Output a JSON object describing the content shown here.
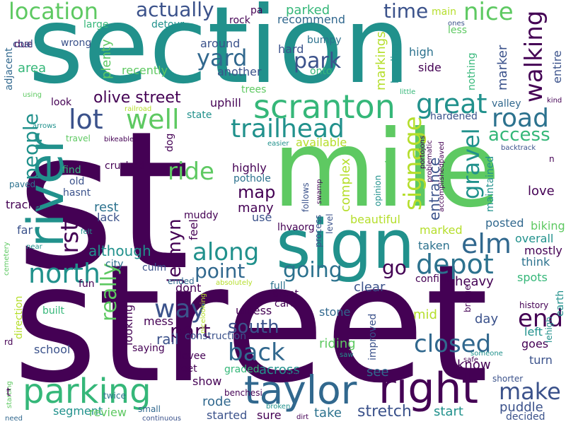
{
  "words": [
    {
      "text": "st",
      "color": "#440154"
    },
    {
      "text": "street",
      "color": "#440154"
    },
    {
      "text": "section",
      "color": "#21918c"
    },
    {
      "text": "mile",
      "color": "#5ec962"
    },
    {
      "text": "sign",
      "color": "#21918c"
    },
    {
      "text": "taylor",
      "color": "#31688e"
    },
    {
      "text": "right",
      "color": "#440154"
    },
    {
      "text": "parking",
      "color": "#35b779"
    },
    {
      "text": "river",
      "color": "#21918c"
    },
    {
      "text": "scranton",
      "color": "#35b779"
    },
    {
      "text": "trailhead",
      "color": "#21918c"
    },
    {
      "text": "location",
      "color": "#5ec962"
    },
    {
      "text": "actually",
      "color": "#3b528b"
    },
    {
      "text": "nice",
      "color": "#5ec962"
    },
    {
      "text": "time",
      "color": "#3b528b"
    },
    {
      "text": "walking",
      "color": "#440154"
    },
    {
      "text": "road",
      "color": "#2c728e"
    },
    {
      "text": "yard",
      "color": "#31688e"
    },
    {
      "text": "park",
      "color": "#3b528b"
    },
    {
      "text": "lot",
      "color": "#3b528b"
    },
    {
      "text": "well",
      "color": "#5ec962"
    },
    {
      "text": "great",
      "color": "#21918c"
    },
    {
      "text": "olive street",
      "color": "#440154"
    },
    {
      "text": "access",
      "color": "#35b779"
    },
    {
      "text": "ride",
      "color": "#5ec962"
    },
    {
      "text": "signage",
      "color": "#b5de2b"
    },
    {
      "text": "gravel",
      "color": "#21918c"
    },
    {
      "text": "first",
      "color": "#440154"
    },
    {
      "text": "north",
      "color": "#21918c"
    },
    {
      "text": "people",
      "color": "#21918c"
    },
    {
      "text": "along",
      "color": "#21918c"
    },
    {
      "text": "elm",
      "color": "#31688e"
    },
    {
      "text": "depot",
      "color": "#2c728e"
    },
    {
      "text": "map",
      "color": "#440154"
    },
    {
      "text": "jermyn",
      "color": "#440154"
    },
    {
      "text": "point",
      "color": "#31688e"
    },
    {
      "text": "going",
      "color": "#2c728e"
    },
    {
      "text": "go",
      "color": "#440154"
    },
    {
      "text": "way",
      "color": "#3b528b"
    },
    {
      "text": "back",
      "color": "#31688e"
    },
    {
      "text": "really",
      "color": "#5ec962"
    },
    {
      "text": "south",
      "color": "#3b528b"
    },
    {
      "text": "part",
      "color": "#440154"
    },
    {
      "text": "end",
      "color": "#440154"
    },
    {
      "text": "closed",
      "color": "#31688e"
    },
    {
      "text": "make",
      "color": "#3b528b"
    },
    {
      "text": "stretch",
      "color": "#3b528b"
    },
    {
      "text": "entrance",
      "color": "#3b528b"
    },
    {
      "text": "complex",
      "color": "#b5de2b"
    },
    {
      "text": "parked",
      "color": "#35b779"
    },
    {
      "text": "recommend",
      "color": "#31688e"
    },
    {
      "text": "plenty",
      "color": "#5ec962"
    },
    {
      "text": "area",
      "color": "#35b779"
    },
    {
      "text": "due",
      "color": "#440154"
    },
    {
      "text": "coal",
      "color": "#3b528b"
    },
    {
      "text": "adjacent",
      "color": "#31688e"
    },
    {
      "text": "wrong",
      "color": "#3b528b"
    },
    {
      "text": "large",
      "color": "#35b779"
    },
    {
      "text": "detour",
      "color": "#21918c"
    },
    {
      "text": "around",
      "color": "#3b528b"
    },
    {
      "text": "another",
      "color": "#3b528b"
    },
    {
      "text": "hard",
      "color": "#3b528b"
    },
    {
      "text": "markings",
      "color": "#b5de2b"
    },
    {
      "text": "heading",
      "color": "#21918c"
    },
    {
      "text": "high",
      "color": "#2c728e"
    },
    {
      "text": "side",
      "color": "#440154"
    },
    {
      "text": "nothing",
      "color": "#35b779"
    },
    {
      "text": "marker",
      "color": "#3b528b"
    },
    {
      "text": "entire",
      "color": "#3b528b"
    },
    {
      "text": "rock",
      "color": "#440154"
    },
    {
      "text": "pa",
      "color": "#440154"
    },
    {
      "text": "bumpy",
      "color": "#2c728e"
    },
    {
      "text": "main",
      "color": "#b5de2b"
    },
    {
      "text": "less",
      "color": "#5ec962"
    },
    {
      "text": "recently",
      "color": "#5ec962"
    },
    {
      "text": "onto",
      "color": "#35b779"
    },
    {
      "text": "look",
      "color": "#440154"
    },
    {
      "text": "uphill",
      "color": "#440154"
    },
    {
      "text": "trees",
      "color": "#5ec962"
    },
    {
      "text": "valley",
      "color": "#31688e"
    },
    {
      "text": "hardened",
      "color": "#3b528b"
    },
    {
      "text": "kind",
      "color": "#440154"
    },
    {
      "text": "available",
      "color": "#b5de2b"
    },
    {
      "text": "crossing",
      "color": "#5ec962"
    },
    {
      "text": "maintained",
      "color": "#21918c"
    },
    {
      "text": "highly",
      "color": "#440154"
    },
    {
      "text": "pothole",
      "color": "#2c728e"
    },
    {
      "text": "crushed",
      "color": "#440154"
    },
    {
      "text": "dog",
      "color": "#440154"
    },
    {
      "text": "find",
      "color": "#35b779"
    },
    {
      "text": "old",
      "color": "#3b528b"
    },
    {
      "text": "hasnt",
      "color": "#3b528b"
    },
    {
      "text": "paved",
      "color": "#2c728e"
    },
    {
      "text": "tracks",
      "color": "#440154"
    },
    {
      "text": "rest",
      "color": "#2c728e"
    },
    {
      "text": "lack",
      "color": "#3b528b"
    },
    {
      "text": "far",
      "color": "#3b528b"
    },
    {
      "text": "many",
      "color": "#440154"
    },
    {
      "text": "use",
      "color": "#3b528b"
    },
    {
      "text": "feel",
      "color": "#440154"
    },
    {
      "text": "follows",
      "color": "#3b528b"
    },
    {
      "text": "opinion",
      "color": "#21918c"
    },
    {
      "text": "muddy",
      "color": "#440154"
    },
    {
      "text": "love",
      "color": "#440154"
    },
    {
      "text": "beautiful",
      "color": "#b5de2b"
    },
    {
      "text": "biking",
      "color": "#5ec962"
    },
    {
      "text": "posted",
      "color": "#31688e"
    },
    {
      "text": "overall",
      "color": "#21918c"
    },
    {
      "text": "mostly",
      "color": "#440154"
    },
    {
      "text": "marked",
      "color": "#b5de2b"
    },
    {
      "text": "taken",
      "color": "#2c728e"
    },
    {
      "text": "although",
      "color": "#21918c"
    },
    {
      "text": "think",
      "color": "#2c728e"
    },
    {
      "text": "spots",
      "color": "#35b779"
    },
    {
      "text": "heavy",
      "color": "#440154"
    },
    {
      "text": "confirm",
      "color": "#440154"
    },
    {
      "text": "clear",
      "color": "#3b528b"
    },
    {
      "text": "dont",
      "color": "#440154"
    },
    {
      "text": "unless",
      "color": "#440154"
    },
    {
      "text": "stone",
      "color": "#31688e"
    },
    {
      "text": "mid",
      "color": "#b5de2b"
    },
    {
      "text": "day",
      "color": "#3b528b"
    },
    {
      "text": "left",
      "color": "#21918c"
    },
    {
      "text": "goes",
      "color": "#440154"
    },
    {
      "text": "turn",
      "color": "#3b528b"
    },
    {
      "text": "history",
      "color": "#440154"
    },
    {
      "text": "earth",
      "color": "#21918c"
    },
    {
      "text": "lehigh",
      "color": "#21918c"
    },
    {
      "text": "direction",
      "color": "#b5de2b"
    },
    {
      "text": "school",
      "color": "#3b528b"
    },
    {
      "text": "built",
      "color": "#35b779"
    },
    {
      "text": "fun",
      "color": "#440154"
    },
    {
      "text": "city",
      "color": "#2c728e"
    },
    {
      "text": "culm",
      "color": "#3b528b"
    },
    {
      "text": "ended",
      "color": "#31688e"
    },
    {
      "text": "mess",
      "color": "#440154"
    },
    {
      "text": "looking",
      "color": "#440154"
    },
    {
      "text": "saying",
      "color": "#440154"
    },
    {
      "text": "rail",
      "color": "#3b528b"
    },
    {
      "text": "construction",
      "color": "#3b528b"
    },
    {
      "text": "riding",
      "color": "#5ec962"
    },
    {
      "text": "improved",
      "color": "#3b528b"
    },
    {
      "text": "know",
      "color": "#440154"
    },
    {
      "text": "see",
      "color": "#31688e"
    },
    {
      "text": "across",
      "color": "#21918c"
    },
    {
      "text": "levee",
      "color": "#440154"
    },
    {
      "text": "feet",
      "color": "#440154"
    },
    {
      "text": "graded",
      "color": "#35b779"
    },
    {
      "text": "show",
      "color": "#440154"
    },
    {
      "text": "rode",
      "color": "#31688e"
    },
    {
      "text": "started",
      "color": "#3b528b"
    },
    {
      "text": "sure",
      "color": "#440154"
    },
    {
      "text": "take",
      "color": "#2c728e"
    },
    {
      "text": "start",
      "color": "#21918c"
    },
    {
      "text": "puddle",
      "color": "#3b528b"
    },
    {
      "text": "decided",
      "color": "#3b528b"
    },
    {
      "text": "shorter",
      "color": "#3b528b"
    },
    {
      "text": "segment",
      "color": "#21918c"
    },
    {
      "text": "review",
      "color": "#5ec962"
    },
    {
      "text": "small",
      "color": "#31688e"
    },
    {
      "text": "continuous",
      "color": "#3b528b"
    },
    {
      "text": "twice",
      "color": "#2c728e"
    },
    {
      "text": "starting",
      "color": "#5ec962"
    },
    {
      "text": "need",
      "color": "#31688e"
    },
    {
      "text": "t",
      "color": "#440154"
    },
    {
      "text": "rd",
      "color": "#440154"
    },
    {
      "text": "cemetery",
      "color": "#5ec962"
    },
    {
      "text": "near",
      "color": "#21918c"
    },
    {
      "text": "using",
      "color": "#5ec962"
    },
    {
      "text": "arrows",
      "color": "#21918c"
    },
    {
      "text": "travel",
      "color": "#5ec962"
    },
    {
      "text": "bikeable",
      "color": "#440154"
    },
    {
      "text": "state",
      "color": "#21918c"
    },
    {
      "text": "railroad",
      "color": "#b5de2b"
    },
    {
      "text": "little",
      "color": "#35b779"
    },
    {
      "text": "ones",
      "color": "#3b528b"
    },
    {
      "text": "easier",
      "color": "#21918c"
    },
    {
      "text": "portojons",
      "color": "#440154"
    },
    {
      "text": "problematic",
      "color": "#440154"
    },
    {
      "text": "accomplishedpaved",
      "color": "#440154"
    },
    {
      "text": "backtrack",
      "color": "#3b528b"
    },
    {
      "text": "n",
      "color": "#440154"
    },
    {
      "text": "lhvaorg",
      "color": "#440154"
    },
    {
      "text": "swamp",
      "color": "#440154"
    },
    {
      "text": "level",
      "color": "#3b528b"
    },
    {
      "text": "process",
      "color": "#3b528b"
    },
    {
      "text": "felt",
      "color": "#21918c"
    },
    {
      "text": "absolutely",
      "color": "#b5de2b"
    },
    {
      "text": "full",
      "color": "#2c728e"
    },
    {
      "text": "arent",
      "color": "#440154"
    },
    {
      "text": "care",
      "color": "#440154"
    },
    {
      "text": "bridge",
      "color": "#440154"
    },
    {
      "text": "nicelooking",
      "color": "#b5de2b"
    },
    {
      "text": "saw",
      "color": "#21918c"
    },
    {
      "text": "don",
      "color": "#440154"
    },
    {
      "text": "broken",
      "color": "#21918c"
    },
    {
      "text": "dirt",
      "color": "#440154"
    },
    {
      "text": "benchesi",
      "color": "#440154"
    },
    {
      "text": "someone",
      "color": "#21918c"
    },
    {
      "text": "safe",
      "color": "#440154"
    }
  ]
}
